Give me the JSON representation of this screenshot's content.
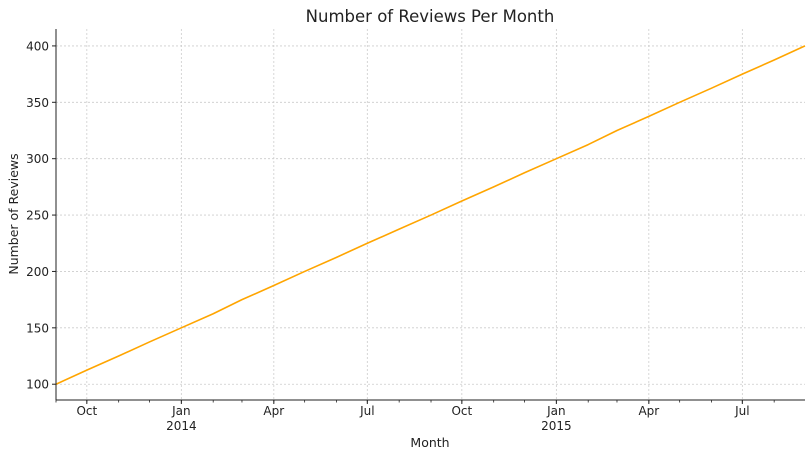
{
  "chart_data": {
    "type": "line",
    "title": "Number of Reviews Per Month",
    "xlabel": "Month",
    "ylabel": "Number of Reviews",
    "x_range": [
      "2013-09-01",
      "2015-08-31"
    ],
    "ylim": [
      86,
      415
    ],
    "grid": true,
    "legend": "none",
    "line_color": "#FFA500",
    "x_ticks": [
      {
        "date": "2013-10-01",
        "label": "Oct",
        "sub": ""
      },
      {
        "date": "2014-01-01",
        "label": "Jan",
        "sub": "2014"
      },
      {
        "date": "2014-04-01",
        "label": "Apr",
        "sub": ""
      },
      {
        "date": "2014-07-01",
        "label": "Jul",
        "sub": ""
      },
      {
        "date": "2014-10-01",
        "label": "Oct",
        "sub": ""
      },
      {
        "date": "2015-01-01",
        "label": "Jan",
        "sub": "2015"
      },
      {
        "date": "2015-04-01",
        "label": "Apr",
        "sub": ""
      },
      {
        "date": "2015-07-01",
        "label": "Jul",
        "sub": ""
      }
    ],
    "y_ticks": [
      100,
      150,
      200,
      250,
      300,
      350,
      400
    ],
    "x": [
      "2013-09-01",
      "2013-10-01",
      "2013-11-01",
      "2013-12-01",
      "2014-01-01",
      "2014-02-01",
      "2014-03-01",
      "2014-04-01",
      "2014-05-01",
      "2014-06-01",
      "2014-07-01",
      "2014-08-01",
      "2014-09-01",
      "2014-10-01",
      "2014-11-01",
      "2014-12-01",
      "2015-01-01",
      "2015-02-01",
      "2015-03-01",
      "2015-04-01",
      "2015-05-01",
      "2015-06-01",
      "2015-07-01",
      "2015-08-01",
      "2015-08-31"
    ],
    "values": [
      100,
      112.5,
      125,
      137.5,
      150,
      162.5,
      175,
      187.5,
      200,
      212.5,
      225,
      237.5,
      250,
      262.5,
      275,
      287.5,
      300,
      312.5,
      325,
      337.5,
      350,
      362.5,
      375,
      387.5,
      400
    ]
  }
}
